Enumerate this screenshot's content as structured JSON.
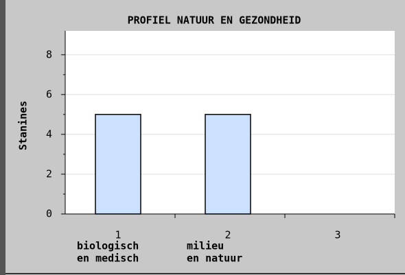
{
  "chart_data": {
    "type": "bar",
    "title": "PROFIEL NATUUR EN GEZONDHEID",
    "y_label": "Stanines",
    "categories": [
      "1",
      "2",
      "3"
    ],
    "descriptions": [
      [
        "biologisch",
        "en medisch"
      ],
      [
        "milieu",
        "en natuur"
      ],
      null
    ],
    "values": [
      5,
      5,
      null
    ],
    "color": "#cce0ff",
    "ylim": [
      0,
      9.2
    ],
    "yticks": [
      0,
      2,
      4,
      6,
      8
    ],
    "grid": true
  }
}
